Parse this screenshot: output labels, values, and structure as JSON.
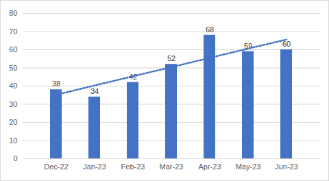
{
  "chart_data": {
    "type": "bar",
    "categories": [
      "Dec-22",
      "Jan-23",
      "Feb-23",
      "Mar-23",
      "Apr-23",
      "May-23",
      "Jun-23"
    ],
    "series": [
      {
        "type": "bar",
        "color": "#4472c4",
        "values": [
          38,
          34,
          42,
          52,
          68,
          59,
          60
        ]
      },
      {
        "type": "line",
        "line_style": "dotted",
        "color": "#4472c4",
        "values": [
          35.2,
          40.3,
          45.4,
          50.4,
          55.5,
          60.6,
          65.6
        ]
      }
    ],
    "ylim": [
      0,
      80
    ],
    "yticks": [
      0,
      10,
      20,
      30,
      40,
      50,
      60,
      70,
      80
    ],
    "grid": true,
    "data_labels": true
  }
}
